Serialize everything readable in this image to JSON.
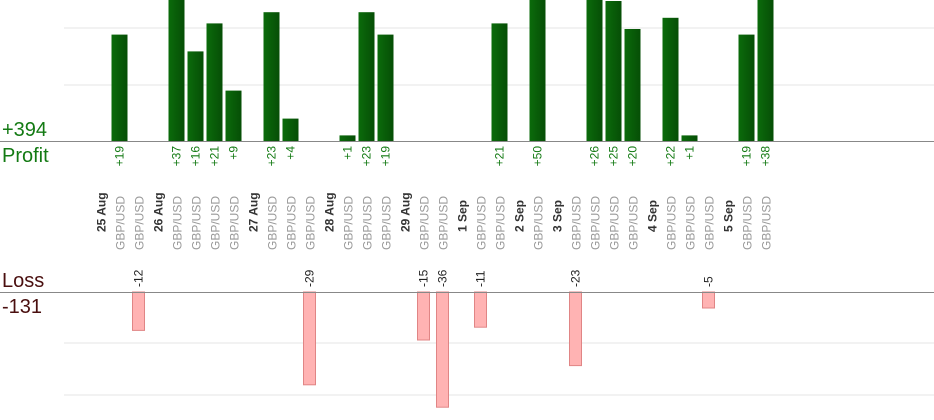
{
  "summary": {
    "profit_total": "+394",
    "profit_label": "Profit",
    "loss_label": "Loss",
    "loss_total": "-131"
  },
  "colors": {
    "profit_bar": "#0b6b0b",
    "profit_bar_dark": "#064e06",
    "profit_text": "#137a13",
    "loss_bar": "#ffb3b3",
    "loss_bar_border": "#e08585",
    "loss_text": "#222222",
    "axis": "#888888",
    "grid": "#e6e6e6",
    "pair_text": "#999999",
    "date_text": "#333333"
  },
  "chart_data": {
    "type": "bar",
    "title": "",
    "xlabel": "",
    "ylabel": "",
    "profit_ylim": [
      0,
      50
    ],
    "loss_ylim": [
      -40,
      0
    ],
    "days": [
      {
        "date": "25 Aug",
        "trades": [
          {
            "pair": "GBP/USD",
            "value": 19
          },
          {
            "pair": "GBP/USD",
            "value": -12
          }
        ]
      },
      {
        "date": "26 Aug",
        "trades": [
          {
            "pair": "GBP/USD",
            "value": 37
          },
          {
            "pair": "GBP/USD",
            "value": 16
          },
          {
            "pair": "GBP/USD",
            "value": 21
          },
          {
            "pair": "GBP/USD",
            "value": 9
          }
        ]
      },
      {
        "date": "27 Aug",
        "trades": [
          {
            "pair": "GBP/USD",
            "value": 23
          },
          {
            "pair": "GBP/USD",
            "value": 4
          },
          {
            "pair": "GBP/USD",
            "value": -29
          }
        ]
      },
      {
        "date": "28 Aug",
        "trades": [
          {
            "pair": "GBP/USD",
            "value": 1
          },
          {
            "pair": "GBP/USD",
            "value": 23
          },
          {
            "pair": "GBP/USD",
            "value": 19
          }
        ]
      },
      {
        "date": "29 Aug",
        "trades": [
          {
            "pair": "GBP/USD",
            "value": -15
          },
          {
            "pair": "GBP/USD",
            "value": -36
          }
        ]
      },
      {
        "date": "1 Sep",
        "trades": [
          {
            "pair": "GBP/USD",
            "value": -11
          },
          {
            "pair": "GBP/USD",
            "value": 21
          }
        ]
      },
      {
        "date": "2 Sep",
        "trades": [
          {
            "pair": "GBP/USD",
            "value": 50
          }
        ]
      },
      {
        "date": "3 Sep",
        "trades": [
          {
            "pair": "GBP/USD",
            "value": -23
          },
          {
            "pair": "GBP/USD",
            "value": 26
          },
          {
            "pair": "GBP/USD",
            "value": 25
          },
          {
            "pair": "GBP/USD",
            "value": 20
          }
        ]
      },
      {
        "date": "4 Sep",
        "trades": [
          {
            "pair": "GBP/USD",
            "value": 22
          },
          {
            "pair": "GBP/USD",
            "value": 1
          },
          {
            "pair": "GBP/USD",
            "value": -5
          }
        ]
      },
      {
        "date": "5 Sep",
        "trades": [
          {
            "pair": "GBP/USD",
            "value": 19
          },
          {
            "pair": "GBP/USD",
            "value": 38
          }
        ]
      }
    ]
  }
}
